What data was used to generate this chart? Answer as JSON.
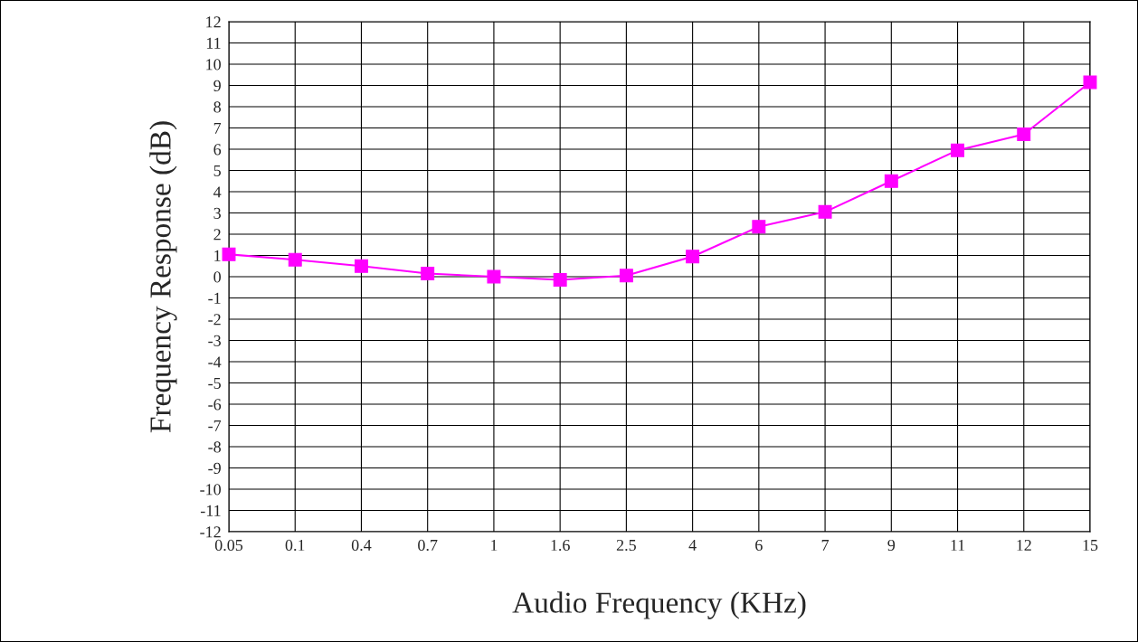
{
  "chart_data": {
    "type": "line",
    "xlabel": "Audio Frequency (KHz)",
    "ylabel": "Frequency Response (dB)",
    "categories": [
      "0.05",
      "0.1",
      "0.4",
      "0.7",
      "1",
      "1.6",
      "2.5",
      "4",
      "6",
      "7",
      "9",
      "11",
      "12",
      "15"
    ],
    "series": [
      {
        "color": "#ff00ff",
        "values": [
          1.05,
          0.8,
          0.5,
          0.15,
          0.0,
          -0.15,
          0.05,
          0.95,
          2.35,
          3.05,
          4.5,
          5.95,
          6.7,
          9.15
        ]
      }
    ],
    "ylim": [
      -12,
      12
    ],
    "yticks": [
      -12,
      -11,
      -10,
      -9,
      -8,
      -7,
      -6,
      -5,
      -4,
      -3,
      -2,
      -1,
      0,
      1,
      2,
      3,
      4,
      5,
      6,
      7,
      8,
      9,
      10,
      11,
      12
    ],
    "grid": true,
    "marker": "square",
    "line_style": "solid"
  }
}
